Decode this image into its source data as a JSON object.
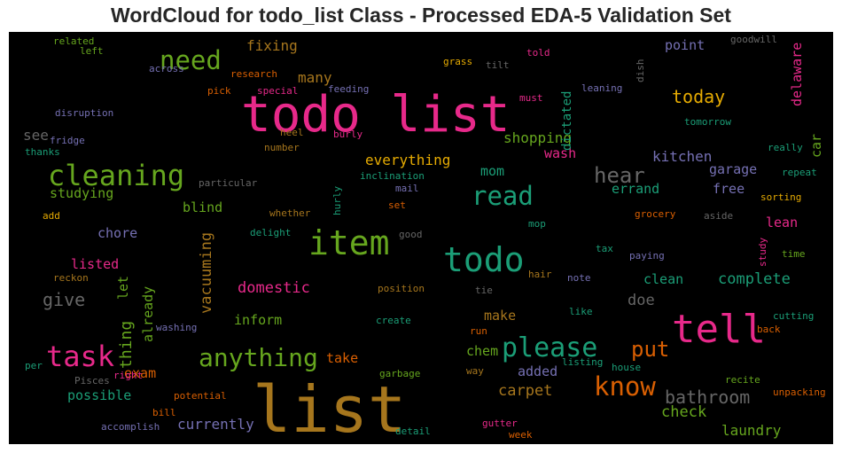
{
  "chart_data": {
    "type": "wordcloud",
    "title": "WordCloud for todo_list Class - Processed EDA-5 Validation Set",
    "background": "#000000",
    "colormap": "Dark2",
    "words": [
      {
        "text": "todo list",
        "color": "#e7298a"
      },
      {
        "text": "list",
        "color": "#a6761d"
      },
      {
        "text": "item",
        "color": "#66a61e"
      },
      {
        "text": "todo",
        "color": "#1b9e77"
      },
      {
        "text": "tell",
        "color": "#e7298a"
      },
      {
        "text": "cleaning",
        "color": "#66a61e"
      },
      {
        "text": "task",
        "color": "#e7298a"
      },
      {
        "text": "please",
        "color": "#1b9e77"
      },
      {
        "text": "need",
        "color": "#66a61e"
      },
      {
        "text": "anything",
        "color": "#66a61e"
      },
      {
        "text": "read",
        "color": "#1b9e77"
      },
      {
        "text": "know",
        "color": "#d95f02"
      },
      {
        "text": "hear",
        "color": "#666666"
      },
      {
        "text": "put",
        "color": "#d95f02"
      },
      {
        "text": "bathroom",
        "color": "#666666"
      },
      {
        "text": "today",
        "color": "#e6ab02"
      },
      {
        "text": "give",
        "color": "#666666"
      },
      {
        "text": "thing",
        "color": "#66a61e"
      },
      {
        "text": "vacuuming",
        "color": "#a6761d"
      },
      {
        "text": "domestic",
        "color": "#e7298a"
      },
      {
        "text": "complete",
        "color": "#1b9e77"
      },
      {
        "text": "shopping",
        "color": "#66a61e"
      },
      {
        "text": "everything",
        "color": "#e6ab02"
      },
      {
        "text": "kitchen",
        "color": "#7570b3"
      },
      {
        "text": "check",
        "color": "#66a61e"
      },
      {
        "text": "carpet",
        "color": "#a6761d"
      },
      {
        "text": "laundry",
        "color": "#66a61e"
      },
      {
        "text": "currently",
        "color": "#7570b3"
      },
      {
        "text": "fixing",
        "color": "#a6761d"
      },
      {
        "text": "many",
        "color": "#a6761d"
      },
      {
        "text": "see",
        "color": "#666666"
      },
      {
        "text": "studying",
        "color": "#66a61e"
      },
      {
        "text": "blind",
        "color": "#66a61e"
      },
      {
        "text": "chore",
        "color": "#7570b3"
      },
      {
        "text": "listed",
        "color": "#e7298a"
      },
      {
        "text": "possible",
        "color": "#1b9e77"
      },
      {
        "text": "exam",
        "color": "#d95f02"
      },
      {
        "text": "let",
        "color": "#66a61e"
      },
      {
        "text": "already",
        "color": "#66a61e"
      },
      {
        "text": "inform",
        "color": "#66a61e"
      },
      {
        "text": "make",
        "color": "#a6761d"
      },
      {
        "text": "chem",
        "color": "#66a61e"
      },
      {
        "text": "added",
        "color": "#7570b3"
      },
      {
        "text": "take",
        "color": "#d95f02"
      },
      {
        "text": "doe",
        "color": "#666666"
      },
      {
        "text": "clean",
        "color": "#1b9e77"
      },
      {
        "text": "mom",
        "color": "#1b9e77"
      },
      {
        "text": "errand",
        "color": "#1b9e77"
      },
      {
        "text": "free",
        "color": "#7570b3"
      },
      {
        "text": "garage",
        "color": "#7570b3"
      },
      {
        "text": "lean",
        "color": "#e7298a"
      },
      {
        "text": "car",
        "color": "#66a61e"
      },
      {
        "text": "delaware",
        "color": "#e7298a"
      },
      {
        "text": "point",
        "color": "#7570b3"
      },
      {
        "text": "wash",
        "color": "#e7298a"
      },
      {
        "text": "dictated",
        "color": "#1b9e77"
      },
      {
        "text": "related",
        "color": "#66a61e"
      },
      {
        "text": "left",
        "color": "#66a61e"
      },
      {
        "text": "across",
        "color": "#7570b3"
      },
      {
        "text": "research",
        "color": "#d95f02"
      },
      {
        "text": "pick",
        "color": "#d95f02"
      },
      {
        "text": "special",
        "color": "#e7298a"
      },
      {
        "text": "feeding",
        "color": "#7570b3"
      },
      {
        "text": "grass",
        "color": "#e6ab02"
      },
      {
        "text": "tilt",
        "color": "#666666"
      },
      {
        "text": "told",
        "color": "#e7298a"
      },
      {
        "text": "must",
        "color": "#e7298a"
      },
      {
        "text": "dish",
        "color": "#666666"
      },
      {
        "text": "leaning",
        "color": "#7570b3"
      },
      {
        "text": "goodwill",
        "color": "#666666"
      },
      {
        "text": "tomorrow",
        "color": "#1b9e77"
      },
      {
        "text": "disruption",
        "color": "#7570b3"
      },
      {
        "text": "fridge",
        "color": "#7570b3"
      },
      {
        "text": "thanks",
        "color": "#1b9e77"
      },
      {
        "text": "heel",
        "color": "#a6761d"
      },
      {
        "text": "burly",
        "color": "#e7298a"
      },
      {
        "text": "number",
        "color": "#a6761d"
      },
      {
        "text": "particular",
        "color": "#666666"
      },
      {
        "text": "inclination",
        "color": "#1b9e77"
      },
      {
        "text": "mail",
        "color": "#7570b3"
      },
      {
        "text": "hurly",
        "color": "#1b9e77"
      },
      {
        "text": "set",
        "color": "#d95f02"
      },
      {
        "text": "whether",
        "color": "#a6761d"
      },
      {
        "text": "add",
        "color": "#e6ab02"
      },
      {
        "text": "delight",
        "color": "#1b9e77"
      },
      {
        "text": "good",
        "color": "#666666"
      },
      {
        "text": "mop",
        "color": "#1b9e77"
      },
      {
        "text": "grocery",
        "color": "#d95f02"
      },
      {
        "text": "aside",
        "color": "#666666"
      },
      {
        "text": "tax",
        "color": "#1b9e77"
      },
      {
        "text": "paying",
        "color": "#7570b3"
      },
      {
        "text": "study",
        "color": "#e7298a"
      },
      {
        "text": "time",
        "color": "#66a61e"
      },
      {
        "text": "really",
        "color": "#1b9e77"
      },
      {
        "text": "repeat",
        "color": "#1b9e77"
      },
      {
        "text": "sorting",
        "color": "#e6ab02"
      },
      {
        "text": "reckon",
        "color": "#a6761d"
      },
      {
        "text": "position",
        "color": "#a6761d"
      },
      {
        "text": "tie",
        "color": "#666666"
      },
      {
        "text": "hair",
        "color": "#a6761d"
      },
      {
        "text": "note",
        "color": "#7570b3"
      },
      {
        "text": "like",
        "color": "#1b9e77"
      },
      {
        "text": "create",
        "color": "#1b9e77"
      },
      {
        "text": "washing",
        "color": "#7570b3"
      },
      {
        "text": "run",
        "color": "#d95f02"
      },
      {
        "text": "way",
        "color": "#a6761d"
      },
      {
        "text": "listing",
        "color": "#1b9e77"
      },
      {
        "text": "house",
        "color": "#1b9e77"
      },
      {
        "text": "cutting",
        "color": "#1b9e77"
      },
      {
        "text": "back",
        "color": "#d95f02"
      },
      {
        "text": "recite",
        "color": "#66a61e"
      },
      {
        "text": "unpacking",
        "color": "#d95f02"
      },
      {
        "text": "per",
        "color": "#1b9e77"
      },
      {
        "text": "Pisces",
        "color": "#666666"
      },
      {
        "text": "right",
        "color": "#e7298a"
      },
      {
        "text": "potential",
        "color": "#d95f02"
      },
      {
        "text": "bill",
        "color": "#d95f02"
      },
      {
        "text": "accomplish",
        "color": "#7570b3"
      },
      {
        "text": "garbage",
        "color": "#66a61e"
      },
      {
        "text": "detail",
        "color": "#1b9e77"
      },
      {
        "text": "gutter",
        "color": "#e7298a"
      },
      {
        "text": "week",
        "color": "#d95f02"
      }
    ]
  }
}
